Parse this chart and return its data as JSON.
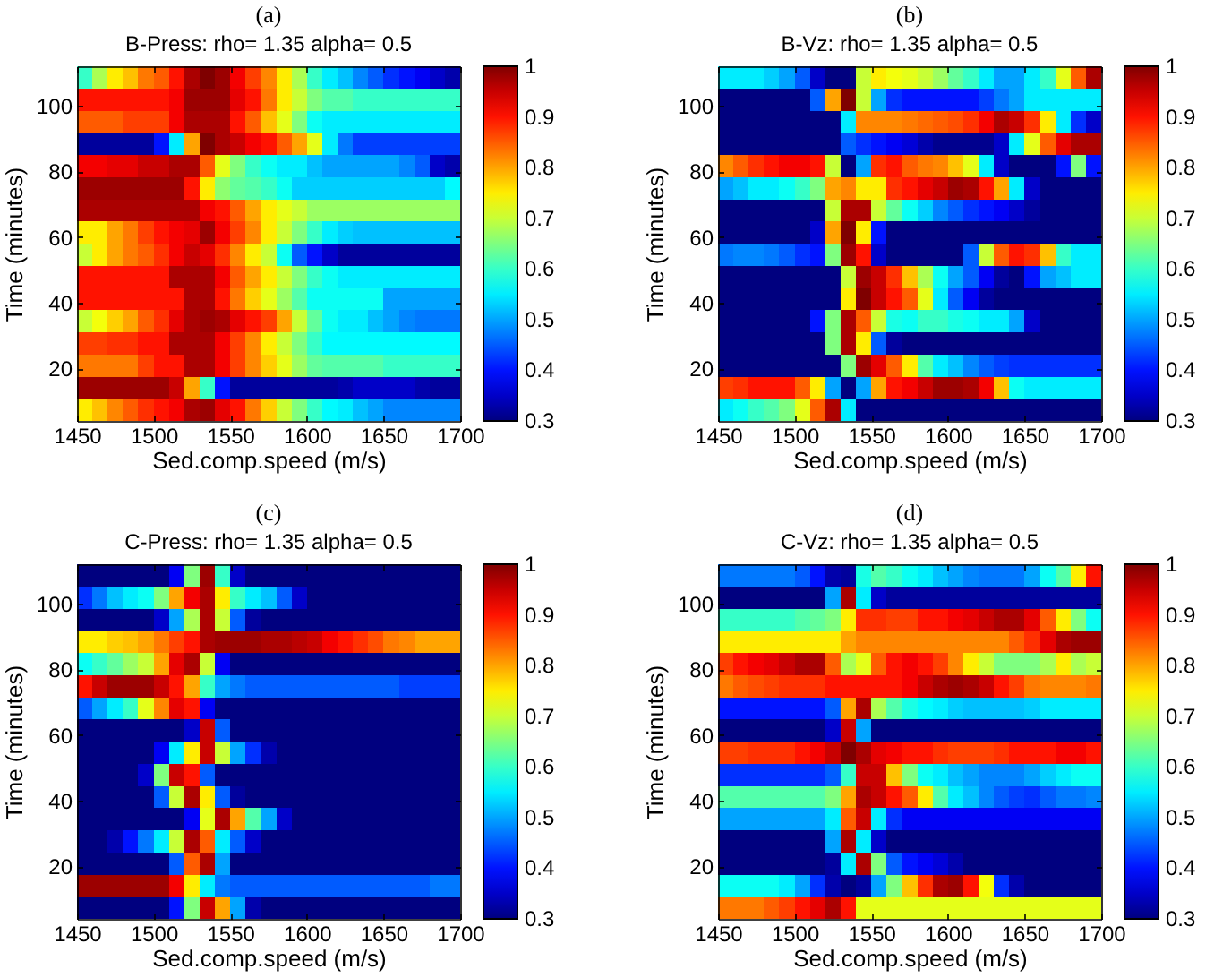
{
  "chart_data": [
    {
      "type": "heatmap",
      "title": "(a)",
      "subtitle": "B-Press: rho= 1.35 alpha= 0.5",
      "xlabel": "Sed.comp.speed (m/s)",
      "ylabel": "Time (minutes)",
      "x": [
        1455,
        1465,
        1475,
        1485,
        1495,
        1505,
        1515,
        1525,
        1535,
        1545,
        1555,
        1565,
        1575,
        1585,
        1595,
        1605,
        1615,
        1625,
        1635,
        1645,
        1655,
        1665,
        1675,
        1685,
        1695
      ],
      "xlim": [
        1450,
        1700
      ],
      "xticks": [
        1450,
        1500,
        1550,
        1600,
        1650,
        1700
      ],
      "ylim": [
        4,
        112
      ],
      "yticks": [
        20,
        40,
        60,
        80,
        100
      ],
      "clim": [
        0.3,
        1
      ],
      "cticks": [
        0.3,
        0.4,
        0.5,
        0.6,
        0.7,
        0.8,
        0.9,
        1
      ],
      "cells": [
        [
          0.6,
          0.68,
          0.75,
          0.78,
          0.83,
          0.85,
          0.9,
          0.97,
          1,
          0.98,
          0.92,
          0.87,
          0.82,
          0.75,
          0.68,
          0.6,
          0.55,
          0.52,
          0.48,
          0.45,
          0.42,
          0.4,
          0.38,
          0.35,
          0.33
        ],
        [
          0.9,
          0.9,
          0.9,
          0.9,
          0.9,
          0.9,
          0.92,
          0.98,
          0.98,
          0.98,
          0.93,
          0.9,
          0.83,
          0.75,
          0.7,
          0.65,
          0.62,
          0.62,
          0.6,
          0.6,
          0.6,
          0.6,
          0.6,
          0.6,
          0.6
        ],
        [
          0.85,
          0.85,
          0.85,
          0.87,
          0.87,
          0.87,
          0.92,
          0.97,
          0.97,
          0.97,
          0.9,
          0.85,
          0.78,
          0.72,
          0.65,
          0.57,
          0.55,
          0.55,
          0.55,
          0.55,
          0.55,
          0.55,
          0.55,
          0.55,
          0.55
        ],
        [
          0.32,
          0.32,
          0.32,
          0.32,
          0.32,
          0.4,
          0.55,
          0.8,
          1,
          0.97,
          0.95,
          0.92,
          0.9,
          0.85,
          0.8,
          0.72,
          0.55,
          0.47,
          0.43,
          0.43,
          0.43,
          0.43,
          0.43,
          0.43,
          0.43
        ],
        [
          0.92,
          0.92,
          0.93,
          0.93,
          0.95,
          0.95,
          0.97,
          0.97,
          0.85,
          0.72,
          0.65,
          0.6,
          0.57,
          0.55,
          0.55,
          0.52,
          0.5,
          0.5,
          0.5,
          0.5,
          0.5,
          0.48,
          0.45,
          0.35,
          0.33
        ],
        [
          0.98,
          0.98,
          0.98,
          0.98,
          0.98,
          0.98,
          0.98,
          0.9,
          0.75,
          0.66,
          0.63,
          0.62,
          0.6,
          0.57,
          0.53,
          0.53,
          0.53,
          0.53,
          0.53,
          0.53,
          0.53,
          0.53,
          0.53,
          0.53,
          0.56
        ],
        [
          0.97,
          0.97,
          0.97,
          0.97,
          0.97,
          0.97,
          0.97,
          0.97,
          0.92,
          0.9,
          0.85,
          0.8,
          0.75,
          0.72,
          0.7,
          0.67,
          0.67,
          0.67,
          0.67,
          0.67,
          0.67,
          0.67,
          0.67,
          0.67,
          0.67
        ],
        [
          0.75,
          0.75,
          0.8,
          0.83,
          0.87,
          0.9,
          0.92,
          0.93,
          0.98,
          0.92,
          0.87,
          0.82,
          0.75,
          0.7,
          0.65,
          0.6,
          0.55,
          0.53,
          0.52,
          0.52,
          0.52,
          0.52,
          0.52,
          0.52,
          0.52
        ],
        [
          0.7,
          0.75,
          0.8,
          0.83,
          0.85,
          0.88,
          0.92,
          0.95,
          0.93,
          0.88,
          0.82,
          0.75,
          0.7,
          0.57,
          0.45,
          0.4,
          0.35,
          0.32,
          0.32,
          0.32,
          0.32,
          0.32,
          0.32,
          0.32,
          0.32
        ],
        [
          0.9,
          0.9,
          0.9,
          0.9,
          0.9,
          0.9,
          0.97,
          0.97,
          0.97,
          0.92,
          0.85,
          0.8,
          0.75,
          0.7,
          0.65,
          0.6,
          0.57,
          0.55,
          0.55,
          0.55,
          0.55,
          0.55,
          0.55,
          0.55,
          0.55
        ],
        [
          0.9,
          0.9,
          0.9,
          0.9,
          0.9,
          0.9,
          0.9,
          0.97,
          0.97,
          0.9,
          0.83,
          0.77,
          0.72,
          0.67,
          0.62,
          0.57,
          0.57,
          0.57,
          0.57,
          0.57,
          0.5,
          0.5,
          0.5,
          0.5,
          0.5
        ],
        [
          0.7,
          0.73,
          0.77,
          0.8,
          0.85,
          0.88,
          0.93,
          0.97,
          0.98,
          0.97,
          0.93,
          0.9,
          0.87,
          0.8,
          0.7,
          0.63,
          0.57,
          0.55,
          0.55,
          0.52,
          0.5,
          0.48,
          0.47,
          0.47,
          0.47
        ],
        [
          0.87,
          0.87,
          0.88,
          0.88,
          0.9,
          0.9,
          0.97,
          0.97,
          0.97,
          0.92,
          0.87,
          0.82,
          0.75,
          0.7,
          0.65,
          0.6,
          0.56,
          0.56,
          0.56,
          0.56,
          0.56,
          0.56,
          0.56,
          0.56,
          0.56
        ],
        [
          0.83,
          0.83,
          0.83,
          0.83,
          0.87,
          0.9,
          0.9,
          0.97,
          0.97,
          0.92,
          0.87,
          0.82,
          0.77,
          0.72,
          0.67,
          0.63,
          0.62,
          0.62,
          0.62,
          0.62,
          0.6,
          0.6,
          0.6,
          0.6,
          0.6
        ],
        [
          0.98,
          0.98,
          0.98,
          0.98,
          0.98,
          0.98,
          0.95,
          0.8,
          0.6,
          0.4,
          0.32,
          0.32,
          0.32,
          0.32,
          0.32,
          0.32,
          0.32,
          0.33,
          0.35,
          0.35,
          0.35,
          0.35,
          0.33,
          0.32,
          0.32
        ],
        [
          0.75,
          0.78,
          0.82,
          0.85,
          0.88,
          0.9,
          0.92,
          0.97,
          0.98,
          0.93,
          0.9,
          0.83,
          0.77,
          0.7,
          0.65,
          0.6,
          0.56,
          0.55,
          0.52,
          0.5,
          0.48,
          0.48,
          0.48,
          0.48,
          0.48
        ]
      ]
    },
    {
      "type": "heatmap",
      "title": "(b)",
      "subtitle": "B-Vz: rho= 1.35 alpha= 0.5",
      "xlabel": "Sed.comp.speed (m/s)",
      "ylabel": "Time (minutes)",
      "x": [
        1455,
        1465,
        1475,
        1485,
        1495,
        1505,
        1515,
        1525,
        1535,
        1545,
        1555,
        1565,
        1575,
        1585,
        1595,
        1605,
        1615,
        1625,
        1635,
        1645,
        1655,
        1665,
        1675,
        1685,
        1695
      ],
      "xlim": [
        1450,
        1700
      ],
      "xticks": [
        1450,
        1500,
        1550,
        1600,
        1650,
        1700
      ],
      "ylim": [
        4,
        112
      ],
      "yticks": [
        20,
        40,
        60,
        80,
        100
      ],
      "clim": [
        0.3,
        1
      ],
      "cticks": [
        0.3,
        0.4,
        0.5,
        0.6,
        0.7,
        0.8,
        0.9,
        1
      ],
      "cells": [
        [
          0.55,
          0.55,
          0.55,
          0.53,
          0.5,
          0.45,
          0.35,
          0.3,
          0.3,
          0.7,
          0.75,
          0.73,
          0.72,
          0.7,
          0.67,
          0.63,
          0.6,
          0.55,
          0.5,
          0.5,
          0.55,
          0.6,
          0.72,
          0.85,
          0.97
        ],
        [
          0.3,
          0.3,
          0.3,
          0.3,
          0.3,
          0.3,
          0.45,
          0.8,
          1,
          0.7,
          0.5,
          0.42,
          0.4,
          0.4,
          0.4,
          0.4,
          0.4,
          0.43,
          0.47,
          0.5,
          0.55,
          0.55,
          0.55,
          0.55,
          0.55
        ],
        [
          0.3,
          0.3,
          0.3,
          0.3,
          0.3,
          0.3,
          0.3,
          0.3,
          0.55,
          0.82,
          0.82,
          0.82,
          0.83,
          0.84,
          0.85,
          0.86,
          0.88,
          0.92,
          0.97,
          0.95,
          0.88,
          0.75,
          0.55,
          0.42,
          0.35
        ],
        [
          0.3,
          0.3,
          0.3,
          0.3,
          0.3,
          0.3,
          0.3,
          0.3,
          0.45,
          0.42,
          0.4,
          0.38,
          0.36,
          0.33,
          0.31,
          0.31,
          0.31,
          0.31,
          0.35,
          0.55,
          0.72,
          0.85,
          0.93,
          0.97,
          0.97
        ],
        [
          0.82,
          0.85,
          0.88,
          0.9,
          0.92,
          0.92,
          0.9,
          0.7,
          0.3,
          0.5,
          0.88,
          0.9,
          0.85,
          0.83,
          0.82,
          0.78,
          0.72,
          0.55,
          0.35,
          0.3,
          0.3,
          0.3,
          0.4,
          0.65,
          0.4
        ],
        [
          0.5,
          0.52,
          0.55,
          0.55,
          0.57,
          0.6,
          0.65,
          0.8,
          0.82,
          0.75,
          0.75,
          0.88,
          0.9,
          0.93,
          0.95,
          0.98,
          0.97,
          0.9,
          0.8,
          0.55,
          0.35,
          0.3,
          0.3,
          0.3,
          0.3
        ],
        [
          0.3,
          0.3,
          0.3,
          0.3,
          0.3,
          0.3,
          0.3,
          0.7,
          0.97,
          0.97,
          0.7,
          0.63,
          0.57,
          0.53,
          0.48,
          0.45,
          0.42,
          0.4,
          0.38,
          0.35,
          0.32,
          0.3,
          0.3,
          0.3,
          0.3
        ],
        [
          0.3,
          0.3,
          0.3,
          0.3,
          0.3,
          0.3,
          0.35,
          0.8,
          1,
          0.75,
          0.4,
          0.3,
          0.3,
          0.3,
          0.3,
          0.3,
          0.3,
          0.3,
          0.3,
          0.3,
          0.3,
          0.3,
          0.3,
          0.3,
          0.3
        ],
        [
          0.47,
          0.48,
          0.48,
          0.47,
          0.45,
          0.42,
          0.4,
          0.65,
          0.98,
          0.9,
          0.35,
          0.3,
          0.3,
          0.3,
          0.3,
          0.3,
          0.45,
          0.7,
          0.85,
          0.9,
          0.88,
          0.78,
          0.6,
          0.55,
          0.55
        ],
        [
          0.3,
          0.3,
          0.3,
          0.3,
          0.3,
          0.3,
          0.3,
          0.3,
          0.7,
          0.98,
          0.95,
          0.88,
          0.78,
          0.68,
          0.57,
          0.5,
          0.45,
          0.38,
          0.32,
          0.3,
          0.4,
          0.5,
          0.52,
          0.55,
          0.55
        ],
        [
          0.3,
          0.3,
          0.3,
          0.3,
          0.3,
          0.3,
          0.3,
          0.3,
          0.75,
          1,
          0.95,
          0.9,
          0.85,
          0.72,
          0.55,
          0.45,
          0.38,
          0.32,
          0.3,
          0.3,
          0.3,
          0.3,
          0.3,
          0.3,
          0.3
        ],
        [
          0.3,
          0.3,
          0.3,
          0.3,
          0.3,
          0.3,
          0.4,
          0.65,
          0.97,
          0.85,
          0.7,
          0.58,
          0.57,
          0.6,
          0.6,
          0.58,
          0.57,
          0.55,
          0.55,
          0.5,
          0.35,
          0.3,
          0.3,
          0.3,
          0.3
        ],
        [
          0.3,
          0.3,
          0.3,
          0.3,
          0.3,
          0.3,
          0.3,
          0.65,
          0.97,
          0.75,
          0.45,
          0.32,
          0.3,
          0.3,
          0.3,
          0.3,
          0.3,
          0.3,
          0.3,
          0.3,
          0.3,
          0.3,
          0.3,
          0.3,
          0.3
        ],
        [
          0.3,
          0.3,
          0.3,
          0.3,
          0.3,
          0.3,
          0.3,
          0.3,
          0.65,
          0.98,
          0.93,
          0.85,
          0.75,
          0.62,
          0.55,
          0.52,
          0.48,
          0.45,
          0.43,
          0.42,
          0.42,
          0.42,
          0.42,
          0.42,
          0.42
        ],
        [
          0.87,
          0.88,
          0.9,
          0.9,
          0.9,
          0.85,
          0.75,
          0.5,
          0.3,
          0.5,
          0.8,
          0.9,
          0.92,
          0.95,
          0.98,
          0.98,
          0.97,
          0.92,
          0.78,
          0.57,
          0.55,
          0.55,
          0.55,
          0.55,
          0.55
        ],
        [
          0.55,
          0.57,
          0.6,
          0.62,
          0.65,
          0.72,
          0.85,
          0.97,
          0.55,
          0.3,
          0.3,
          0.3,
          0.3,
          0.3,
          0.3,
          0.3,
          0.3,
          0.3,
          0.3,
          0.3,
          0.3,
          0.3,
          0.3,
          0.3,
          0.3
        ]
      ]
    },
    {
      "type": "heatmap",
      "title": "(c)",
      "subtitle": "C-Press: rho= 1.35 alpha= 0.5",
      "xlabel": "Sed.comp.speed (m/s)",
      "ylabel": "Time (minutes)",
      "x": [
        1455,
        1465,
        1475,
        1485,
        1495,
        1505,
        1515,
        1525,
        1535,
        1545,
        1555,
        1565,
        1575,
        1585,
        1595,
        1605,
        1615,
        1625,
        1635,
        1645,
        1655,
        1665,
        1675,
        1685,
        1695
      ],
      "xlim": [
        1450,
        1700
      ],
      "xticks": [
        1450,
        1500,
        1550,
        1600,
        1650,
        1700
      ],
      "ylim": [
        4,
        112
      ],
      "yticks": [
        20,
        40,
        60,
        80,
        100
      ],
      "clim": [
        0.3,
        1
      ],
      "cticks": [
        0.3,
        0.4,
        0.5,
        0.6,
        0.7,
        0.8,
        0.9,
        1
      ],
      "cells": [
        [
          0.3,
          0.3,
          0.3,
          0.3,
          0.3,
          0.3,
          0.38,
          0.65,
          0.98,
          0.6,
          0.35,
          0.3,
          0.3,
          0.3,
          0.3,
          0.3,
          0.3,
          0.3,
          0.3,
          0.3,
          0.3,
          0.3,
          0.3,
          0.3,
          0.3
        ],
        [
          0.42,
          0.47,
          0.52,
          0.55,
          0.57,
          0.65,
          0.8,
          0.92,
          0.97,
          0.75,
          0.6,
          0.55,
          0.52,
          0.45,
          0.35,
          0.3,
          0.3,
          0.3,
          0.3,
          0.3,
          0.3,
          0.3,
          0.3,
          0.3,
          0.3
        ],
        [
          0.3,
          0.3,
          0.3,
          0.3,
          0.3,
          0.35,
          0.5,
          0.68,
          0.97,
          0.7,
          0.45,
          0.32,
          0.3,
          0.3,
          0.3,
          0.3,
          0.3,
          0.3,
          0.3,
          0.3,
          0.3,
          0.3,
          0.3,
          0.3,
          0.3
        ],
        [
          0.75,
          0.75,
          0.77,
          0.78,
          0.8,
          0.83,
          0.87,
          0.9,
          0.97,
          0.98,
          0.98,
          0.98,
          0.97,
          0.97,
          0.96,
          0.95,
          0.92,
          0.9,
          0.88,
          0.86,
          0.83,
          0.82,
          0.8,
          0.8,
          0.8
        ],
        [
          0.57,
          0.6,
          0.63,
          0.67,
          0.7,
          0.8,
          0.93,
          0.97,
          0.7,
          0.38,
          0.3,
          0.3,
          0.3,
          0.3,
          0.3,
          0.3,
          0.3,
          0.3,
          0.3,
          0.3,
          0.3,
          0.3,
          0.3,
          0.3,
          0.3
        ],
        [
          0.9,
          0.95,
          0.98,
          0.98,
          0.98,
          0.95,
          0.9,
          0.8,
          0.6,
          0.5,
          0.47,
          0.45,
          0.45,
          0.45,
          0.45,
          0.45,
          0.45,
          0.45,
          0.45,
          0.45,
          0.45,
          0.43,
          0.43,
          0.43,
          0.43
        ],
        [
          0.45,
          0.5,
          0.55,
          0.6,
          0.72,
          0.82,
          0.93,
          0.9,
          0.38,
          0.3,
          0.3,
          0.3,
          0.3,
          0.3,
          0.3,
          0.3,
          0.3,
          0.3,
          0.3,
          0.3,
          0.3,
          0.3,
          0.3,
          0.3,
          0.3
        ],
        [
          0.3,
          0.3,
          0.3,
          0.3,
          0.3,
          0.3,
          0.3,
          0.35,
          0.95,
          0.45,
          0.3,
          0.3,
          0.3,
          0.3,
          0.3,
          0.3,
          0.3,
          0.3,
          0.3,
          0.3,
          0.3,
          0.3,
          0.3,
          0.3,
          0.3
        ],
        [
          0.3,
          0.3,
          0.3,
          0.3,
          0.3,
          0.38,
          0.55,
          0.75,
          0.95,
          0.7,
          0.5,
          0.42,
          0.33,
          0.3,
          0.3,
          0.3,
          0.3,
          0.3,
          0.3,
          0.3,
          0.3,
          0.3,
          0.3,
          0.3,
          0.3
        ],
        [
          0.3,
          0.3,
          0.3,
          0.3,
          0.35,
          0.65,
          0.95,
          0.9,
          0.45,
          0.3,
          0.3,
          0.3,
          0.3,
          0.3,
          0.3,
          0.3,
          0.3,
          0.3,
          0.3,
          0.3,
          0.3,
          0.3,
          0.3,
          0.3,
          0.3
        ],
        [
          0.3,
          0.3,
          0.3,
          0.3,
          0.3,
          0.45,
          0.7,
          0.97,
          0.75,
          0.45,
          0.32,
          0.3,
          0.3,
          0.3,
          0.3,
          0.3,
          0.3,
          0.3,
          0.3,
          0.3,
          0.3,
          0.3,
          0.3,
          0.3,
          0.3
        ],
        [
          0.3,
          0.3,
          0.3,
          0.3,
          0.3,
          0.3,
          0.3,
          0.38,
          0.72,
          0.97,
          0.8,
          0.62,
          0.5,
          0.35,
          0.3,
          0.3,
          0.3,
          0.3,
          0.3,
          0.3,
          0.3,
          0.3,
          0.3,
          0.3,
          0.3
        ],
        [
          0.3,
          0.3,
          0.33,
          0.4,
          0.47,
          0.55,
          0.7,
          0.97,
          0.85,
          0.55,
          0.45,
          0.35,
          0.3,
          0.3,
          0.3,
          0.3,
          0.3,
          0.3,
          0.3,
          0.3,
          0.3,
          0.3,
          0.3,
          0.3,
          0.3
        ],
        [
          0.3,
          0.3,
          0.3,
          0.3,
          0.3,
          0.3,
          0.45,
          0.85,
          0.97,
          0.5,
          0.3,
          0.3,
          0.3,
          0.3,
          0.3,
          0.3,
          0.3,
          0.3,
          0.3,
          0.3,
          0.3,
          0.3,
          0.3,
          0.3,
          0.3
        ],
        [
          0.98,
          0.98,
          0.98,
          0.98,
          0.98,
          0.98,
          0.92,
          0.75,
          0.55,
          0.47,
          0.45,
          0.45,
          0.45,
          0.45,
          0.45,
          0.45,
          0.45,
          0.45,
          0.45,
          0.45,
          0.45,
          0.45,
          0.45,
          0.47,
          0.47
        ],
        [
          0.3,
          0.3,
          0.3,
          0.3,
          0.3,
          0.3,
          0.4,
          0.65,
          0.95,
          0.8,
          0.5,
          0.33,
          0.3,
          0.3,
          0.3,
          0.3,
          0.3,
          0.3,
          0.3,
          0.3,
          0.3,
          0.3,
          0.3,
          0.3,
          0.3
        ]
      ]
    },
    {
      "type": "heatmap",
      "title": "(d)",
      "subtitle": "C-Vz: rho= 1.35 alpha= 0.5",
      "xlabel": "Sed.comp.speed (m/s)",
      "ylabel": "Time (minutes)",
      "x": [
        1455,
        1465,
        1475,
        1485,
        1495,
        1505,
        1515,
        1525,
        1535,
        1545,
        1555,
        1565,
        1575,
        1585,
        1595,
        1605,
        1615,
        1625,
        1635,
        1645,
        1655,
        1665,
        1675,
        1685,
        1695
      ],
      "xlim": [
        1450,
        1700
      ],
      "xticks": [
        1450,
        1500,
        1550,
        1600,
        1650,
        1700
      ],
      "ylim": [
        4,
        112
      ],
      "yticks": [
        20,
        40,
        60,
        80,
        100
      ],
      "clim": [
        0.3,
        1
      ],
      "cticks": [
        0.3,
        0.4,
        0.5,
        0.6,
        0.7,
        0.8,
        0.9,
        1
      ],
      "cells": [
        [
          0.47,
          0.47,
          0.47,
          0.47,
          0.47,
          0.45,
          0.4,
          0.33,
          0.32,
          0.58,
          0.62,
          0.6,
          0.57,
          0.55,
          0.52,
          0.5,
          0.48,
          0.47,
          0.47,
          0.47,
          0.5,
          0.57,
          0.62,
          0.75,
          0.9
        ],
        [
          0.3,
          0.3,
          0.3,
          0.3,
          0.3,
          0.3,
          0.3,
          0.5,
          0.97,
          0.55,
          0.35,
          0.32,
          0.32,
          0.32,
          0.32,
          0.32,
          0.32,
          0.32,
          0.32,
          0.32,
          0.32,
          0.32,
          0.32,
          0.32,
          0.32
        ],
        [
          0.6,
          0.6,
          0.6,
          0.6,
          0.6,
          0.62,
          0.63,
          0.65,
          0.75,
          0.88,
          0.88,
          0.87,
          0.87,
          0.9,
          0.9,
          0.92,
          0.93,
          0.95,
          0.97,
          0.97,
          0.93,
          0.85,
          0.75,
          0.65,
          0.57
        ],
        [
          0.75,
          0.75,
          0.75,
          0.75,
          0.75,
          0.75,
          0.75,
          0.75,
          0.8,
          0.82,
          0.82,
          0.82,
          0.82,
          0.82,
          0.82,
          0.82,
          0.82,
          0.82,
          0.82,
          0.85,
          0.88,
          0.93,
          0.97,
          0.98,
          0.98
        ],
        [
          0.87,
          0.9,
          0.92,
          0.93,
          0.95,
          0.97,
          0.97,
          0.85,
          0.68,
          0.72,
          0.85,
          0.9,
          0.92,
          0.9,
          0.87,
          0.82,
          0.75,
          0.7,
          0.65,
          0.65,
          0.65,
          0.68,
          0.75,
          0.68,
          0.7
        ],
        [
          0.83,
          0.85,
          0.86,
          0.87,
          0.88,
          0.88,
          0.88,
          0.9,
          0.9,
          0.9,
          0.9,
          0.9,
          0.92,
          0.95,
          0.97,
          0.98,
          0.97,
          0.95,
          0.9,
          0.87,
          0.83,
          0.82,
          0.82,
          0.82,
          0.83
        ],
        [
          0.4,
          0.4,
          0.4,
          0.4,
          0.4,
          0.4,
          0.4,
          0.45,
          0.8,
          0.97,
          0.68,
          0.62,
          0.58,
          0.56,
          0.55,
          0.53,
          0.52,
          0.52,
          0.52,
          0.52,
          0.53,
          0.55,
          0.55,
          0.55,
          0.55
        ],
        [
          0.3,
          0.3,
          0.3,
          0.3,
          0.3,
          0.3,
          0.3,
          0.35,
          0.95,
          0.5,
          0.3,
          0.3,
          0.3,
          0.3,
          0.3,
          0.3,
          0.3,
          0.3,
          0.3,
          0.3,
          0.3,
          0.3,
          0.3,
          0.3,
          0.3
        ],
        [
          0.87,
          0.87,
          0.88,
          0.88,
          0.88,
          0.9,
          0.92,
          0.95,
          1,
          0.97,
          0.93,
          0.92,
          0.9,
          0.9,
          0.88,
          0.87,
          0.87,
          0.87,
          0.88,
          0.9,
          0.9,
          0.9,
          0.92,
          0.92,
          0.9
        ],
        [
          0.42,
          0.42,
          0.42,
          0.42,
          0.42,
          0.42,
          0.42,
          0.45,
          0.6,
          0.95,
          0.95,
          0.78,
          0.65,
          0.57,
          0.55,
          0.52,
          0.5,
          0.48,
          0.48,
          0.48,
          0.5,
          0.53,
          0.55,
          0.57,
          0.57
        ],
        [
          0.62,
          0.62,
          0.62,
          0.62,
          0.62,
          0.62,
          0.62,
          0.65,
          0.8,
          0.97,
          0.95,
          0.9,
          0.85,
          0.75,
          0.62,
          0.55,
          0.52,
          0.48,
          0.45,
          0.43,
          0.42,
          0.45,
          0.47,
          0.47,
          0.48
        ],
        [
          0.5,
          0.5,
          0.5,
          0.5,
          0.5,
          0.5,
          0.5,
          0.55,
          0.85,
          0.95,
          0.55,
          0.42,
          0.38,
          0.38,
          0.38,
          0.38,
          0.38,
          0.38,
          0.38,
          0.38,
          0.38,
          0.38,
          0.38,
          0.38,
          0.38
        ],
        [
          0.3,
          0.3,
          0.3,
          0.3,
          0.3,
          0.3,
          0.3,
          0.5,
          0.97,
          0.55,
          0.35,
          0.3,
          0.3,
          0.3,
          0.3,
          0.3,
          0.3,
          0.3,
          0.3,
          0.3,
          0.3,
          0.3,
          0.3,
          0.3,
          0.3
        ],
        [
          0.3,
          0.3,
          0.3,
          0.3,
          0.3,
          0.3,
          0.3,
          0.32,
          0.55,
          0.97,
          0.65,
          0.45,
          0.4,
          0.38,
          0.36,
          0.33,
          0.3,
          0.3,
          0.3,
          0.3,
          0.3,
          0.3,
          0.3,
          0.3,
          0.3
        ],
        [
          0.57,
          0.57,
          0.57,
          0.57,
          0.55,
          0.5,
          0.42,
          0.33,
          0.3,
          0.32,
          0.5,
          0.65,
          0.78,
          0.88,
          0.97,
          0.98,
          0.9,
          0.73,
          0.42,
          0.33,
          0.3,
          0.3,
          0.3,
          0.3,
          0.3
        ],
        [
          0.83,
          0.83,
          0.83,
          0.85,
          0.87,
          0.9,
          0.93,
          0.97,
          0.9,
          0.72,
          0.72,
          0.72,
          0.72,
          0.72,
          0.72,
          0.72,
          0.72,
          0.72,
          0.72,
          0.72,
          0.72,
          0.72,
          0.72,
          0.72,
          0.72
        ]
      ]
    }
  ]
}
